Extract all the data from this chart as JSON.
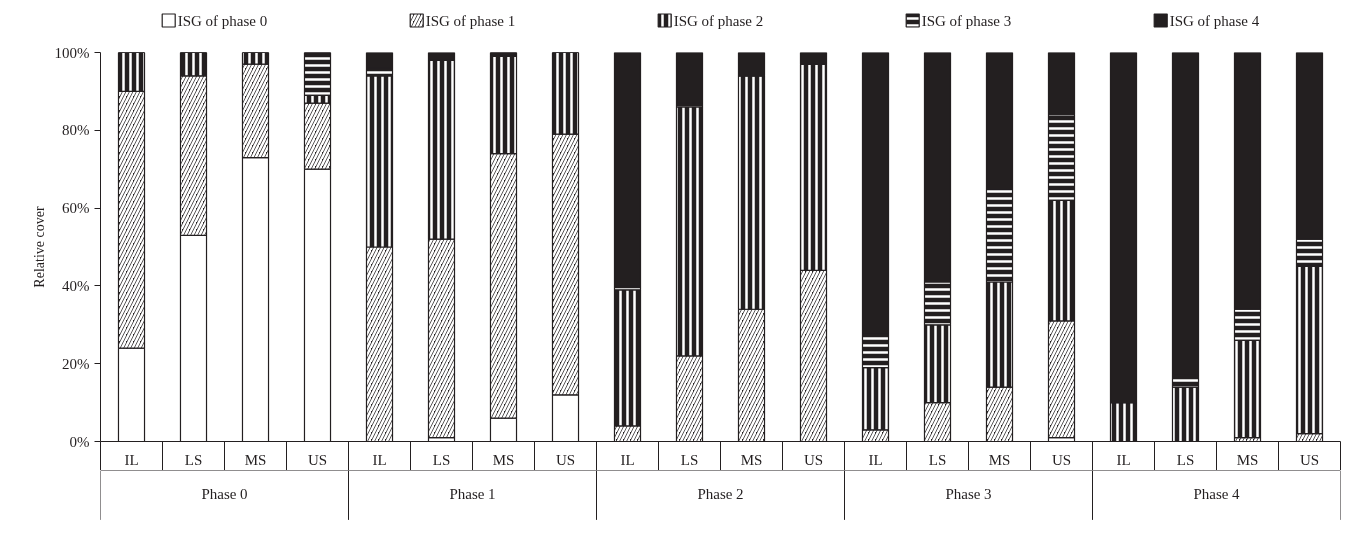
{
  "chart_data": {
    "type": "bar",
    "stacked": true,
    "legend": "top",
    "ylabel": "Relative cover",
    "categories": [
      "IL",
      "LS",
      "MS",
      "US",
      "IL",
      "LS",
      "MS",
      "US",
      "IL",
      "LS",
      "MS",
      "US",
      "IL",
      "LS",
      "MS",
      "US",
      "IL",
      "LS",
      "MS",
      "US"
    ],
    "annotations": [
      "Phase 0",
      "Phase 1",
      "Phase 2",
      "Phase 3",
      "Phase 4"
    ],
    "ylim": [
      0,
      100
    ],
    "yticks": [
      {
        "value": 0,
        "label": "0%"
      },
      {
        "value": 20,
        "label": "20%"
      },
      {
        "value": 40,
        "label": "40%"
      },
      {
        "value": 60,
        "label": "60%"
      },
      {
        "value": 80,
        "label": "80%"
      },
      {
        "value": 100,
        "label": "100%"
      }
    ],
    "series": [
      {
        "name": "ISG of phase 0",
        "color": "#ffffff",
        "values": [
          24,
          53,
          73,
          70,
          0,
          1,
          6,
          12,
          0,
          0,
          0,
          0,
          0,
          0,
          0,
          1,
          0,
          0,
          0,
          0
        ]
      },
      {
        "name": "ISG of phase 1",
        "color": "#231f20",
        "values": [
          66,
          41,
          24,
          17,
          50,
          51,
          68,
          67,
          4,
          22,
          34,
          44,
          3,
          10,
          14,
          30,
          0,
          0,
          1,
          2
        ]
      },
      {
        "name": "ISG of phase 2",
        "color": "#231f20",
        "values": [
          10,
          6,
          3,
          2,
          44,
          46,
          25,
          21,
          35,
          64,
          60,
          53,
          16,
          20,
          27,
          31,
          10,
          14,
          25,
          43
        ]
      },
      {
        "name": "ISG of phase 3",
        "color": "#231f20",
        "values": [
          0,
          0,
          0,
          11,
          2,
          0,
          1,
          0,
          1,
          1,
          0,
          0,
          9,
          11,
          24,
          22,
          0,
          3,
          8,
          7
        ]
      },
      {
        "name": "ISG of phase 4",
        "color": "#231f20",
        "values": [
          0,
          0,
          0,
          0,
          4,
          2,
          0,
          0,
          60,
          13,
          6,
          3,
          72,
          59,
          35,
          16,
          90,
          83,
          66,
          48
        ]
      }
    ]
  }
}
